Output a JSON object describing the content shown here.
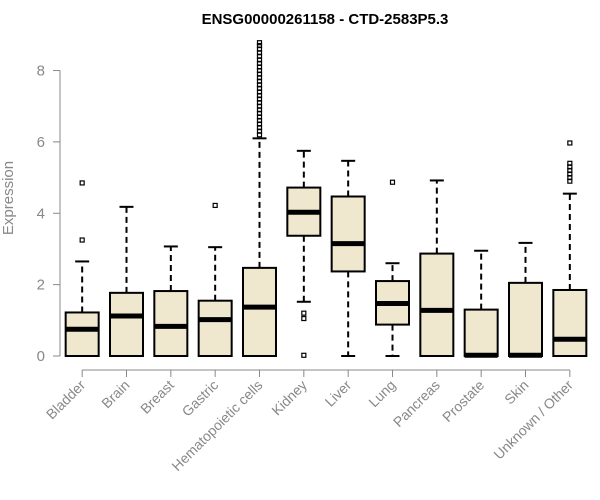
{
  "chart_data": {
    "type": "boxplot",
    "title": "ENSG00000261158 - CTD-2583P5.3",
    "xlabel": "",
    "ylabel": "Expression",
    "ylim": [
      0,
      8.8
    ],
    "yticks": [
      0,
      2,
      4,
      6,
      8
    ],
    "grid": false,
    "colors": {
      "box_fill": "#efe8cf",
      "box_stroke": "#000000",
      "axis": "#888888"
    },
    "categories": [
      "Bladder",
      "Brain",
      "Breast",
      "Gastric",
      "Hematopoietic cells",
      "Kidney",
      "Liver",
      "Lung",
      "Pancreas",
      "Prostate",
      "Skin",
      "Unknown / Other"
    ],
    "boxes": [
      {
        "label": "Bladder",
        "whislo": 0,
        "q1": 0,
        "med": 0.75,
        "q3": 1.22,
        "whishi": 2.65,
        "fliers": [
          3.25,
          4.85
        ]
      },
      {
        "label": "Brain",
        "whislo": 0,
        "q1": 0,
        "med": 1.12,
        "q3": 1.77,
        "whishi": 4.18,
        "fliers": []
      },
      {
        "label": "Breast",
        "whislo": 0,
        "q1": 0,
        "med": 0.83,
        "q3": 1.82,
        "whishi": 3.07,
        "fliers": []
      },
      {
        "label": "Gastric",
        "whislo": 0,
        "q1": 0,
        "med": 1.02,
        "q3": 1.55,
        "whishi": 3.05,
        "fliers": [
          4.22
        ]
      },
      {
        "label": "Hematopoietic cells",
        "whislo": 0,
        "q1": 0,
        "med": 1.37,
        "q3": 2.47,
        "whishi": 6.1,
        "fliers": [
          6.2,
          6.3,
          6.4,
          6.5,
          6.6,
          6.7,
          6.8,
          6.9,
          7.0,
          7.1,
          7.2,
          7.3,
          7.4,
          7.5,
          7.6,
          7.7,
          7.8,
          7.9,
          8.0,
          8.1,
          8.2,
          8.3,
          8.4,
          8.5,
          8.6,
          8.7,
          8.78
        ]
      },
      {
        "label": "Kidney",
        "whislo": 1.52,
        "q1": 3.37,
        "med": 4.03,
        "q3": 4.72,
        "whishi": 5.75,
        "fliers": [
          0.02,
          1.05,
          1.2
        ]
      },
      {
        "label": "Liver",
        "whislo": 0,
        "q1": 2.37,
        "med": 3.15,
        "q3": 4.47,
        "whishi": 5.47,
        "fliers": []
      },
      {
        "label": "Lung",
        "whislo": 0,
        "q1": 0.88,
        "med": 1.47,
        "q3": 2.1,
        "whishi": 2.6,
        "fliers": [
          4.87
        ]
      },
      {
        "label": "Pancreas",
        "whislo": 0,
        "q1": 0,
        "med": 1.28,
        "q3": 2.87,
        "whishi": 4.92,
        "fliers": []
      },
      {
        "label": "Prostate",
        "whislo": 0,
        "q1": 0,
        "med": 0.02,
        "q3": 1.3,
        "whishi": 2.95,
        "fliers": []
      },
      {
        "label": "Skin",
        "whislo": 0,
        "q1": 0,
        "med": 0.02,
        "q3": 2.05,
        "whishi": 3.17,
        "fliers": []
      },
      {
        "label": "Unknown / Other",
        "whislo": 0,
        "q1": 0,
        "med": 0.47,
        "q3": 1.85,
        "whishi": 4.55,
        "fliers": [
          4.9,
          5.0,
          5.1,
          5.2,
          5.3,
          5.4,
          5.97
        ]
      }
    ]
  }
}
